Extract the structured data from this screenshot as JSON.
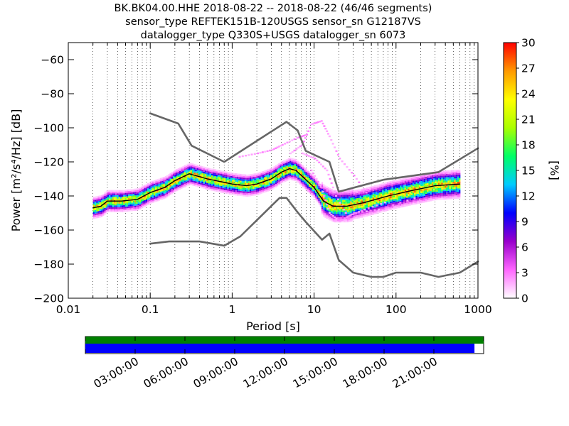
{
  "chart_data": {
    "type": "heatmap",
    "title_lines": [
      "BK.BK04.00.HHE   2018-08-22 -- 2018-08-22  (46/46 segments)",
      "sensor_type REFTEK151B-120USGS sensor_sn G12187VS",
      "datalogger_type Q330S+USGS datalogger_sn 6073"
    ],
    "xlabel": "Period [s]",
    "ylabel": "Power [m²/s⁴/Hz] [dB]",
    "x_scale": "log",
    "xlim": [
      0.01,
      1000
    ],
    "ylim": [
      -200,
      -50
    ],
    "x_ticks": [
      {
        "v": 0.01,
        "label": "0.01"
      },
      {
        "v": 0.1,
        "label": "0.1"
      },
      {
        "v": 1,
        "label": "1"
      },
      {
        "v": 10,
        "label": "10"
      },
      {
        "v": 100,
        "label": "100"
      },
      {
        "v": 1000,
        "label": "1000"
      }
    ],
    "y_ticks": [
      {
        "v": -60,
        "label": "−60"
      },
      {
        "v": -80,
        "label": "−80"
      },
      {
        "v": -100,
        "label": "−100"
      },
      {
        "v": -120,
        "label": "−120"
      },
      {
        "v": -140,
        "label": "−140"
      },
      {
        "v": -160,
        "label": "−160"
      },
      {
        "v": -180,
        "label": "−180"
      },
      {
        "v": -200,
        "label": "−200"
      }
    ],
    "grid": "dotted vertical at decade subdivisions",
    "colorbar": {
      "label": "[%]",
      "range": [
        0,
        30
      ],
      "ticks": [
        "0",
        "3",
        "6",
        "9",
        "12",
        "15",
        "18",
        "21",
        "24",
        "27",
        "30"
      ],
      "colormap": [
        "#ffffff",
        "#ff66ff",
        "#9900cc",
        "#0000ff",
        "#00ccff",
        "#00ff66",
        "#aaff00",
        "#ffff00",
        "#ff9900",
        "#ff0000"
      ]
    },
    "series": [
      {
        "kind": "noise-model-upper",
        "color": "#666666",
        "points": [
          [
            0.1,
            -91.5
          ],
          [
            0.22,
            -97.5
          ],
          [
            0.32,
            -110.5
          ],
          [
            0.8,
            -120
          ],
          [
            4.6,
            -96.5
          ],
          [
            6.3,
            -101.5
          ],
          [
            7.9,
            -113.5
          ],
          [
            15.4,
            -120
          ],
          [
            20,
            -137.5
          ],
          [
            70,
            -130.5
          ],
          [
            330,
            -126
          ],
          [
            1000,
            -112
          ]
        ]
      },
      {
        "kind": "noise-model-lower",
        "color": "#666666",
        "points": [
          [
            0.1,
            -168
          ],
          [
            0.17,
            -166.7
          ],
          [
            0.4,
            -166.7
          ],
          [
            0.8,
            -169.2
          ],
          [
            1.26,
            -163.7
          ],
          [
            3.8,
            -141.1
          ],
          [
            4.6,
            -141.1
          ],
          [
            6.3,
            -149.6
          ],
          [
            7.9,
            -155.2
          ],
          [
            12.5,
            -165.7
          ],
          [
            15.4,
            -162.1
          ],
          [
            20,
            -177.6
          ],
          [
            30,
            -185
          ],
          [
            50,
            -187.5
          ],
          [
            70,
            -187.5
          ],
          [
            100,
            -185
          ],
          [
            200,
            -185
          ],
          [
            330,
            -187.5
          ],
          [
            600,
            -185
          ],
          [
            1000,
            -178.5
          ]
        ]
      },
      {
        "kind": "mode-psd",
        "color": "#000000",
        "points": [
          [
            0.02,
            -147
          ],
          [
            0.025,
            -146
          ],
          [
            0.03,
            -143
          ],
          [
            0.045,
            -143
          ],
          [
            0.07,
            -142
          ],
          [
            0.1,
            -138
          ],
          [
            0.15,
            -135
          ],
          [
            0.2,
            -131
          ],
          [
            0.3,
            -127
          ],
          [
            0.5,
            -130
          ],
          [
            1,
            -133
          ],
          [
            1.5,
            -134
          ],
          [
            2,
            -133
          ],
          [
            3,
            -130
          ],
          [
            4,
            -126
          ],
          [
            5,
            -124
          ],
          [
            6,
            -125
          ],
          [
            7,
            -128
          ],
          [
            10,
            -135
          ],
          [
            13,
            -143
          ],
          [
            17,
            -146
          ],
          [
            25,
            -146
          ],
          [
            40,
            -144
          ],
          [
            80,
            -140
          ],
          [
            150,
            -137
          ],
          [
            300,
            -134
          ],
          [
            600,
            -133
          ]
        ]
      }
    ],
    "density_bands": [
      {
        "desc": "main concentration around mode PSD",
        "offsets_db": [
          -3,
          3
        ],
        "peak_pct": 24
      },
      {
        "desc": "secondary spread",
        "offsets_db": [
          -8,
          6
        ],
        "peak_pct": 9
      },
      {
        "desc": "sparse outliers 8-40 s",
        "peak_pct": 2
      }
    ]
  },
  "timeline": {
    "ticks": [
      "03:00:00",
      "06:00:00",
      "09:00:00",
      "12:00:00",
      "15:00:00",
      "18:00:00",
      "21:00:00"
    ],
    "green_coverage_fraction": 1.0,
    "blue_coverage_fraction": 0.977,
    "colors": {
      "green": "#008000",
      "blue": "#0000ff"
    }
  }
}
